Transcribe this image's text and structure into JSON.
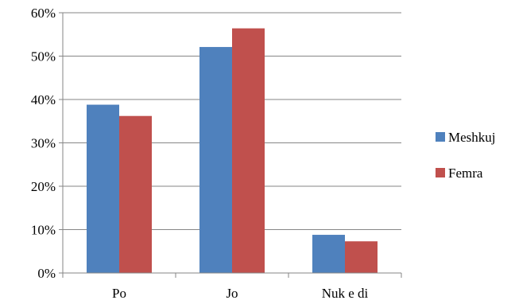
{
  "chart_data": {
    "type": "bar",
    "categories": [
      "Po",
      "Jo",
      "Nuk e di"
    ],
    "series": [
      {
        "name": "Meshkuj",
        "values": [
          38.8,
          52.1,
          8.8
        ],
        "color": "#4F81BD"
      },
      {
        "name": "Femra",
        "values": [
          36.2,
          56.4,
          7.3
        ],
        "color": "#C0504D"
      }
    ],
    "ylim": [
      0,
      60
    ],
    "yticks": [
      0,
      10,
      20,
      30,
      40,
      50,
      60
    ],
    "ytick_labels": [
      "0%",
      "10%",
      "20%",
      "30%",
      "40%",
      "50%",
      "60%"
    ],
    "grid": true,
    "legend_position": "right",
    "gridline_color": "#868686",
    "axis_color": "#868686"
  }
}
